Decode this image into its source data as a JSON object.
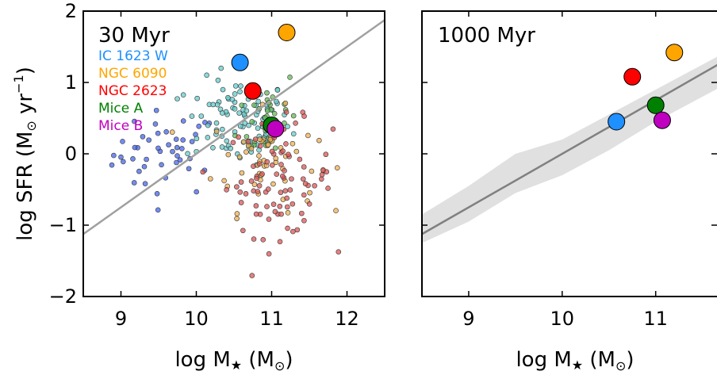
{
  "chart_data": [
    {
      "type": "scatter",
      "panel_label": "30 Myr",
      "xlabel": "log M★ (M⊙)",
      "ylabel": "log SFR (M⊙ yr−1)",
      "xlim": [
        8.5,
        12.5
      ],
      "ylim": [
        -2,
        2
      ],
      "xticks": [
        9,
        10,
        11,
        12
      ],
      "yticks": [
        -2,
        -1,
        0,
        1,
        2
      ],
      "xtick_labels": [
        "9",
        "10",
        "11",
        "12"
      ],
      "ytick_labels": [
        "−2",
        "−1",
        "0",
        "1",
        "2"
      ],
      "grid": false,
      "reference_line": {
        "slope": 0.75,
        "intercept": -7.5,
        "color": "#a0a0a0"
      },
      "legend": [
        {
          "name": "IC 1623 W",
          "color": "#1e90ff"
        },
        {
          "name": "NGC 6090",
          "color": "#ffa500"
        },
        {
          "name": "NGC 2623",
          "color": "#ff0000"
        },
        {
          "name": "Mice A",
          "color": "#008000"
        },
        {
          "name": "Mice B",
          "color": "#c000c0"
        }
      ],
      "highlight_points": [
        {
          "name": "IC 1623 W",
          "x": 10.58,
          "y": 1.28,
          "color": "#1e90ff"
        },
        {
          "name": "NGC 6090",
          "x": 11.2,
          "y": 1.7,
          "color": "#ffa500"
        },
        {
          "name": "NGC 2623",
          "x": 10.75,
          "y": 0.88,
          "color": "#ff0000"
        },
        {
          "name": "Mice A",
          "x": 11.0,
          "y": 0.4,
          "color": "#008000"
        },
        {
          "name": "Mice B",
          "x": 11.05,
          "y": 0.35,
          "color": "#c000c0"
        }
      ],
      "cloud_groups": [
        {
          "name": "blue",
          "color": "#4466ee",
          "cx": 9.6,
          "cy": 0.0,
          "sx": 0.35,
          "sy": 0.3,
          "n": 45
        },
        {
          "name": "cyan",
          "color": "#66cccc",
          "cx": 10.55,
          "cy": 0.45,
          "sx": 0.35,
          "sy": 0.3,
          "n": 95
        },
        {
          "name": "green",
          "color": "#66bb55",
          "cx": 10.95,
          "cy": 0.55,
          "sx": 0.2,
          "sy": 0.35,
          "n": 35
        },
        {
          "name": "orange",
          "color": "#f0b050",
          "cx": 10.9,
          "cy": -0.1,
          "sx": 0.35,
          "sy": 0.35,
          "n": 55
        },
        {
          "name": "red",
          "color": "#dd5555",
          "cx": 11.1,
          "cy": -0.35,
          "sx": 0.35,
          "sy": 0.4,
          "n": 90
        }
      ]
    },
    {
      "type": "scatter",
      "panel_label": "1000 Myr",
      "xlabel": "log M★ (M⊙)",
      "xlim": [
        8.5,
        12.5
      ],
      "ylim": [
        -2,
        2
      ],
      "xticks": [
        9,
        10,
        11,
        12
      ],
      "xtick_labels": [
        "9",
        "10",
        "11",
        "12"
      ],
      "grid": false,
      "reference_line": {
        "slope": 0.75,
        "intercept": -7.5,
        "color": "#808080"
      },
      "band": {
        "x": [
          8.5,
          9.0,
          9.5,
          10.0,
          10.5,
          11.0,
          11.5,
          12.0,
          12.5
        ],
        "lower": [
          -1.25,
          -0.95,
          -0.55,
          -0.3,
          0.05,
          0.45,
          0.8,
          1.15,
          1.5
        ],
        "upper": [
          -0.85,
          -0.45,
          0.0,
          0.2,
          0.55,
          0.9,
          1.25,
          1.6,
          1.95
        ],
        "color": "#e0e0e0"
      },
      "highlight_points": [
        {
          "name": "IC 1623 W",
          "x": 10.58,
          "y": 0.45,
          "color": "#1e90ff"
        },
        {
          "name": "NGC 6090",
          "x": 11.2,
          "y": 1.42,
          "color": "#ffa500"
        },
        {
          "name": "NGC 2623",
          "x": 10.75,
          "y": 1.08,
          "color": "#ff0000"
        },
        {
          "name": "Mice A",
          "x": 11.0,
          "y": 0.68,
          "color": "#008000"
        },
        {
          "name": "Mice B",
          "x": 11.07,
          "y": 0.47,
          "color": "#c000c0"
        }
      ]
    }
  ]
}
